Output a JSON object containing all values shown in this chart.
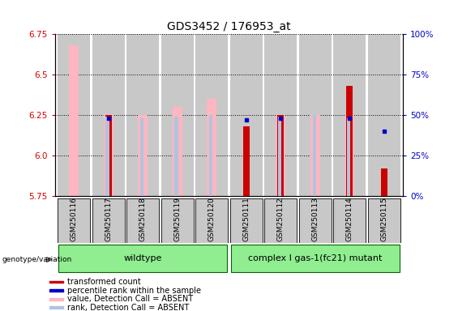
{
  "title": "GDS3452 / 176953_at",
  "samples": [
    "GSM250116",
    "GSM250117",
    "GSM250118",
    "GSM250119",
    "GSM250120",
    "GSM250111",
    "GSM250112",
    "GSM250113",
    "GSM250114",
    "GSM250115"
  ],
  "transformed_count": [
    null,
    6.25,
    null,
    null,
    null,
    6.18,
    6.25,
    null,
    6.43,
    5.92
  ],
  "percentile_rank": [
    null,
    48,
    null,
    null,
    null,
    47,
    48,
    null,
    48,
    40
  ],
  "value_absent": [
    6.68,
    6.25,
    6.25,
    6.3,
    6.35,
    null,
    6.25,
    6.25,
    6.25,
    null
  ],
  "rank_absent": [
    null,
    49,
    48,
    49,
    50,
    null,
    49,
    50,
    48,
    null
  ],
  "ylim_left": [
    5.75,
    6.75
  ],
  "ylim_right": [
    0,
    100
  ],
  "yticks_left": [
    5.75,
    6.0,
    6.25,
    6.5,
    6.75
  ],
  "yticks_right": [
    0,
    25,
    50,
    75,
    100
  ],
  "ytick_labels_right": [
    "0%",
    "25%",
    "50%",
    "75%",
    "100%"
  ],
  "left_tick_color": "#cc0000",
  "right_tick_color": "#0000cc",
  "group1_label": "wildtype",
  "group2_label": "complex I gas-1(fc21) mutant",
  "group1_indices": [
    0,
    4
  ],
  "group2_indices": [
    5,
    9
  ],
  "group_color": "#90ee90",
  "bar_bg_color": "#c8c8c8",
  "color_red": "#cc0000",
  "color_blue": "#0000cc",
  "color_pink": "#ffb6c1",
  "color_lightblue": "#b0c4de",
  "legend_items": [
    {
      "color": "#cc0000",
      "label": "transformed count"
    },
    {
      "color": "#0000cc",
      "label": "percentile rank within the sample"
    },
    {
      "color": "#ffb6c1",
      "label": "value, Detection Call = ABSENT"
    },
    {
      "color": "#b0c4de",
      "label": "rank, Detection Call = ABSENT"
    }
  ],
  "genotype_label": "genotype/variation"
}
